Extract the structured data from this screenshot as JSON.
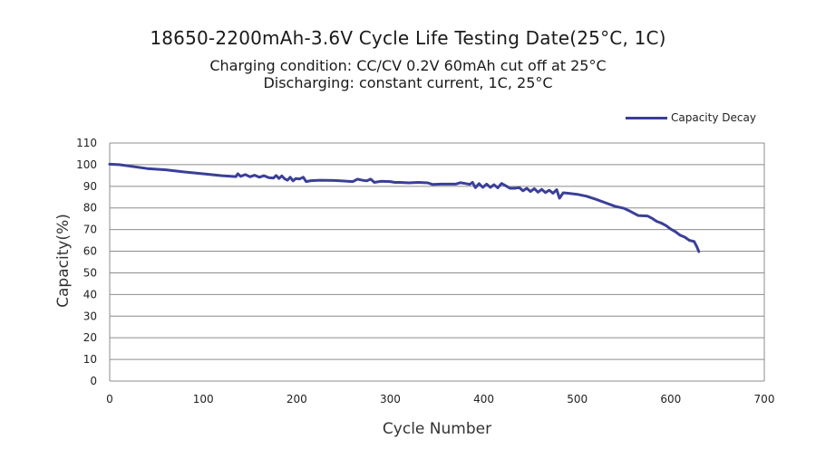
{
  "chart_data": {
    "type": "line",
    "title": "18650-2200mAh-3.6V Cycle Life Testing Date(25°C, 1C)",
    "subtitle": [
      "Charging condition: CC/CV 0.2V 60mAh cut off at 25°C",
      "Discharging: constant current, 1C, 25°C"
    ],
    "xlabel": "Cycle Number",
    "ylabel": "Capacity(%)",
    "xlim": [
      0,
      700
    ],
    "ylim": [
      0,
      110
    ],
    "xticks": [
      0,
      100,
      200,
      300,
      400,
      500,
      600,
      700
    ],
    "yticks": [
      0,
      10,
      20,
      30,
      40,
      50,
      60,
      70,
      80,
      90,
      100,
      110
    ],
    "grid": "horizontal",
    "legend_position": "top-right",
    "series": [
      {
        "name": "Capacity Decay",
        "color": "#3b3f97",
        "points": [
          [
            0,
            100.2
          ],
          [
            10,
            100
          ],
          [
            20,
            99.4
          ],
          [
            40,
            98.2
          ],
          [
            60,
            97.6
          ],
          [
            80,
            96.6
          ],
          [
            100,
            95.8
          ],
          [
            120,
            94.9
          ],
          [
            135,
            94.5
          ],
          [
            137,
            95.8
          ],
          [
            140,
            94.6
          ],
          [
            145,
            95.4
          ],
          [
            150,
            94.4
          ],
          [
            155,
            95.1
          ],
          [
            160,
            94.2
          ],
          [
            165,
            94.9
          ],
          [
            170,
            94
          ],
          [
            175,
            93.8
          ],
          [
            178,
            95
          ],
          [
            181,
            93.6
          ],
          [
            184,
            94.8
          ],
          [
            187,
            93.5
          ],
          [
            190,
            92.8
          ],
          [
            193,
            94.2
          ],
          [
            196,
            92.5
          ],
          [
            199,
            93.6
          ],
          [
            203,
            93.4
          ],
          [
            207,
            94.2
          ],
          [
            210,
            92.2
          ],
          [
            215,
            92.6
          ],
          [
            225,
            92.8
          ],
          [
            240,
            92.7
          ],
          [
            260,
            92.2
          ],
          [
            265,
            93.3
          ],
          [
            270,
            92.8
          ],
          [
            275,
            92.5
          ],
          [
            279,
            93.3
          ],
          [
            283,
            91.8
          ],
          [
            290,
            92.3
          ],
          [
            300,
            92.2
          ],
          [
            305,
            91.8
          ],
          [
            310,
            91.8
          ],
          [
            320,
            91.6
          ],
          [
            330,
            91.8
          ],
          [
            340,
            91.6
          ],
          [
            345,
            90.9
          ],
          [
            355,
            91
          ],
          [
            370,
            91
          ],
          [
            375,
            91.7
          ],
          [
            380,
            91.3
          ],
          [
            385,
            90.9
          ],
          [
            388,
            91.8
          ],
          [
            391,
            89.4
          ],
          [
            395,
            91.2
          ],
          [
            399,
            89.5
          ],
          [
            403,
            91
          ],
          [
            407,
            89.5
          ],
          [
            411,
            90.7
          ],
          [
            415,
            89.3
          ],
          [
            419,
            91.3
          ],
          [
            423,
            90.4
          ],
          [
            428,
            89.1
          ],
          [
            433,
            89.1
          ],
          [
            438,
            89.4
          ],
          [
            442,
            87.9
          ],
          [
            446,
            89.1
          ],
          [
            450,
            87.6
          ],
          [
            454,
            88.9
          ],
          [
            458,
            87.3
          ],
          [
            462,
            88.6
          ],
          [
            466,
            87.1
          ],
          [
            470,
            88.2
          ],
          [
            474,
            86.8
          ],
          [
            478,
            88.4
          ],
          [
            481,
            84.5
          ],
          [
            485,
            87
          ],
          [
            490,
            86.8
          ],
          [
            500,
            86.3
          ],
          [
            510,
            85.4
          ],
          [
            520,
            84
          ],
          [
            530,
            82.4
          ],
          [
            540,
            80.8
          ],
          [
            550,
            79.8
          ],
          [
            555,
            78.8
          ],
          [
            565,
            76.5
          ],
          [
            575,
            76.3
          ],
          [
            580,
            75.2
          ],
          [
            585,
            73.8
          ],
          [
            590,
            73
          ],
          [
            595,
            71.8
          ],
          [
            600,
            70.2
          ],
          [
            605,
            69
          ],
          [
            610,
            67.4
          ],
          [
            615,
            66.5
          ],
          [
            620,
            65
          ],
          [
            625,
            64.5
          ],
          [
            628,
            62
          ],
          [
            630,
            59.8
          ]
        ]
      }
    ]
  }
}
